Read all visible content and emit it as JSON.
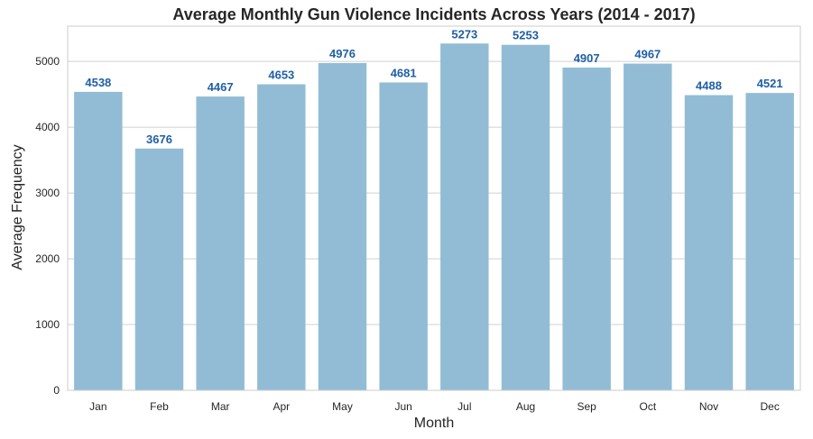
{
  "chart_data": {
    "type": "bar",
    "title": "Average Monthly Gun Violence Incidents Across Years (2014 - 2017)",
    "xlabel": "Month",
    "ylabel": "Average Frequency",
    "categories": [
      "Jan",
      "Feb",
      "Mar",
      "Apr",
      "May",
      "Jun",
      "Jul",
      "Aug",
      "Sep",
      "Oct",
      "Nov",
      "Dec"
    ],
    "values": [
      4538,
      3676,
      4467,
      4653,
      4976,
      4681,
      5273,
      5253,
      4907,
      4967,
      4488,
      4521
    ],
    "data_labels": [
      "4538",
      "3676",
      "4467",
      "4653",
      "4976",
      "4681",
      "5273",
      "5253",
      "4907",
      "4967",
      "4488",
      "4521"
    ],
    "ylim": [
      0,
      5537
    ],
    "yticks": [
      0,
      1000,
      2000,
      3000,
      4000,
      5000
    ],
    "ytick_labels": [
      "0",
      "1000",
      "2000",
      "3000",
      "4000",
      "5000"
    ],
    "grid": "horizontal",
    "legend": "none",
    "colors": {
      "bar": "#92bcd5",
      "data_label": "#1f5fa6",
      "grid": "#d0d0d0",
      "frame": "#cccccc",
      "text": "#262626"
    }
  }
}
